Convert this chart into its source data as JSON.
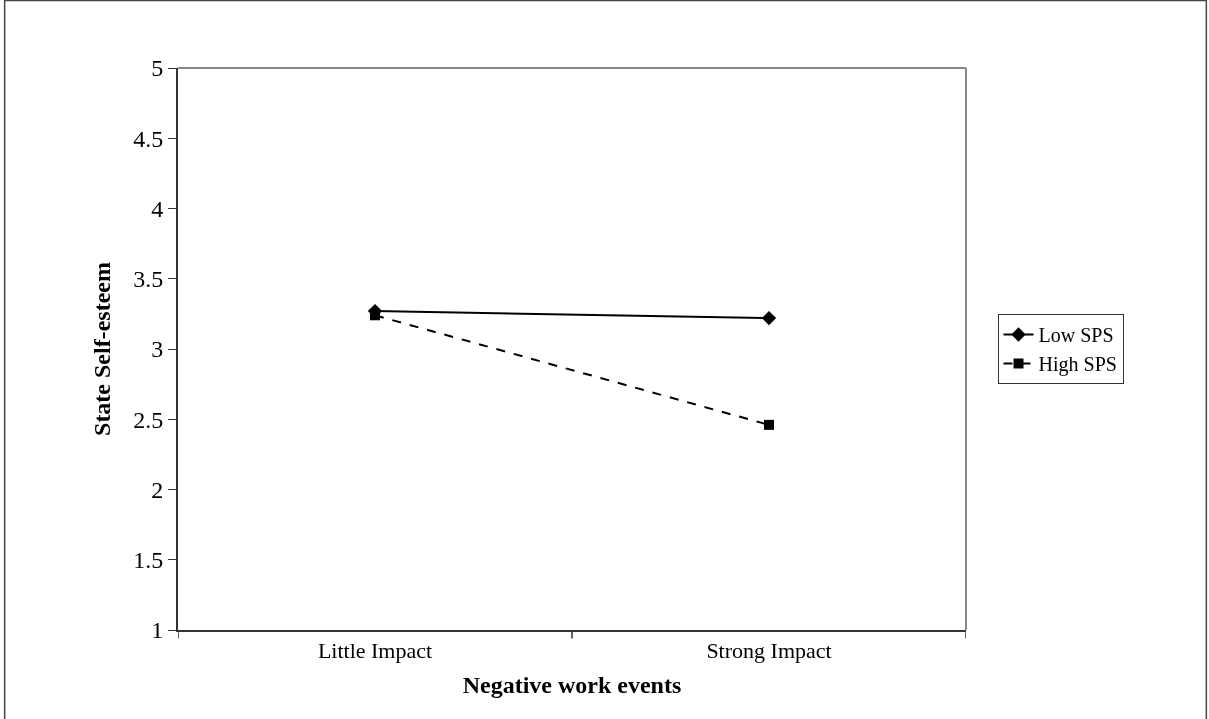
{
  "chart_data": {
    "type": "line",
    "xlabel": "Negative work events",
    "ylabel": "State Self-esteem",
    "categories": [
      "Little Impact",
      "Strong Impact"
    ],
    "series": [
      {
        "name": "Low SPS",
        "color": "#000000",
        "values": [
          3.27,
          3.22
        ],
        "marker": "diamond",
        "line_style": "solid"
      },
      {
        "name": "High SPS",
        "color": "#000000",
        "values": [
          3.24,
          2.46
        ],
        "marker": "square",
        "line_style": "dashed"
      }
    ],
    "ylim": [
      1,
      5
    ],
    "yticks": [
      1,
      1.5,
      2,
      2.5,
      3,
      3.5,
      4,
      4.5,
      5
    ],
    "legend": "right"
  }
}
